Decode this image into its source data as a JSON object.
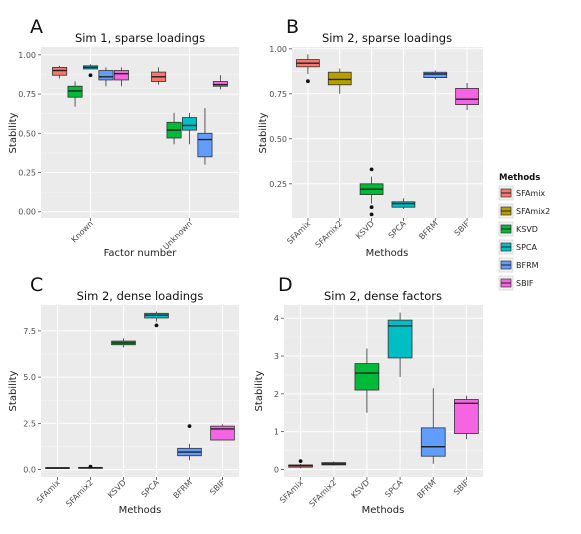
{
  "colors": {
    "SFAmix": "#f8766d",
    "SFAmix2": "#b79f00",
    "KSVD": "#00ba38",
    "SPCA": "#00bfc4",
    "BFRM": "#619cff",
    "SBIF": "#f564e3"
  },
  "legend": {
    "title": "Methods",
    "items": [
      "SFAmix",
      "SFAmix2",
      "KSVD",
      "SPCA",
      "BFRM",
      "SBIF"
    ]
  },
  "chart_data": [
    {
      "type": "boxplot",
      "panel_letter": "A",
      "title": "Sim 1, sparse loadings",
      "xlabel": "Factor number",
      "ylabel": "Stability",
      "categories": [
        "Known",
        "Unknown"
      ],
      "grouped": true,
      "yticks": [
        0.0,
        0.25,
        0.5,
        0.75,
        1.0
      ],
      "ytick_labels": [
        "0.00",
        "0.25",
        "0.50",
        "0.75",
        "1.00"
      ],
      "ylim": [
        -0.04,
        1.05
      ],
      "series": [
        {
          "name": "SFAmix",
          "boxes": [
            {
              "category": "Known",
              "lower": 0.85,
              "q1": 0.87,
              "median": 0.9,
              "q3": 0.92,
              "upper": 0.93,
              "outliers": []
            },
            {
              "category": "Unknown",
              "lower": 0.81,
              "q1": 0.83,
              "median": 0.86,
              "q3": 0.89,
              "upper": 0.92,
              "outliers": []
            }
          ]
        },
        {
          "name": "KSVD",
          "boxes": [
            {
              "category": "Known",
              "lower": 0.67,
              "q1": 0.73,
              "median": 0.77,
              "q3": 0.8,
              "upper": 0.83,
              "outliers": []
            },
            {
              "category": "Unknown",
              "lower": 0.43,
              "q1": 0.47,
              "median": 0.52,
              "q3": 0.57,
              "upper": 0.63,
              "outliers": []
            }
          ]
        },
        {
          "name": "SPCA",
          "boxes": [
            {
              "category": "Known",
              "lower": 0.91,
              "q1": 0.91,
              "median": 0.92,
              "q3": 0.93,
              "upper": 0.94,
              "outliers": [
                0.87
              ]
            },
            {
              "category": "Unknown",
              "lower": 0.43,
              "q1": 0.52,
              "median": 0.55,
              "q3": 0.6,
              "upper": 0.63,
              "outliers": []
            }
          ]
        },
        {
          "name": "BFRM",
          "boxes": [
            {
              "category": "Known",
              "lower": 0.8,
              "q1": 0.84,
              "median": 0.86,
              "q3": 0.9,
              "upper": 0.92,
              "outliers": []
            },
            {
              "category": "Unknown",
              "lower": 0.3,
              "q1": 0.35,
              "median": 0.46,
              "q3": 0.5,
              "upper": 0.66,
              "outliers": []
            }
          ]
        },
        {
          "name": "SBIF",
          "boxes": [
            {
              "category": "Known",
              "lower": 0.8,
              "q1": 0.84,
              "median": 0.88,
              "q3": 0.9,
              "upper": 0.92,
              "outliers": []
            },
            {
              "category": "Unknown",
              "lower": 0.78,
              "q1": 0.8,
              "median": 0.81,
              "q3": 0.83,
              "upper": 0.87,
              "outliers": []
            }
          ]
        }
      ]
    },
    {
      "type": "boxplot",
      "panel_letter": "B",
      "title": "Sim 2, sparse loadings",
      "xlabel": "Methods",
      "ylabel": "Stability",
      "categories": [
        "SFAmix",
        "SFAmix2",
        "KSVD",
        "SPCA",
        "BFRM",
        "SBIF"
      ],
      "grouped": false,
      "yticks": [
        0.25,
        0.5,
        0.75,
        1.0
      ],
      "ytick_labels": [
        "0.25",
        "0.50",
        "0.75",
        "1.00"
      ],
      "ylim": [
        0.06,
        1.01
      ],
      "series": [
        {
          "name": "SFAmix",
          "boxes": [
            {
              "category": "SFAmix",
              "lower": 0.86,
              "q1": 0.9,
              "median": 0.92,
              "q3": 0.94,
              "upper": 0.97,
              "outliers": [
                0.82
              ]
            }
          ]
        },
        {
          "name": "SFAmix2",
          "boxes": [
            {
              "category": "SFAmix2",
              "lower": 0.75,
              "q1": 0.8,
              "median": 0.83,
              "q3": 0.87,
              "upper": 0.89,
              "outliers": []
            }
          ]
        },
        {
          "name": "KSVD",
          "boxes": [
            {
              "category": "KSVD",
              "lower": 0.14,
              "q1": 0.19,
              "median": 0.22,
              "q3": 0.25,
              "upper": 0.29,
              "outliers": [
                0.33,
                0.12,
                0.08
              ]
            }
          ]
        },
        {
          "name": "SPCA",
          "boxes": [
            {
              "category": "SPCA",
              "lower": 0.11,
              "q1": 0.12,
              "median": 0.14,
              "q3": 0.15,
              "upper": 0.17,
              "outliers": []
            }
          ]
        },
        {
          "name": "BFRM",
          "boxes": [
            {
              "category": "BFRM",
              "lower": 0.83,
              "q1": 0.84,
              "median": 0.86,
              "q3": 0.87,
              "upper": 0.88,
              "outliers": []
            }
          ]
        },
        {
          "name": "SBIF",
          "boxes": [
            {
              "category": "SBIF",
              "lower": 0.66,
              "q1": 0.69,
              "median": 0.72,
              "q3": 0.78,
              "upper": 0.81,
              "outliers": []
            }
          ]
        }
      ]
    },
    {
      "type": "boxplot",
      "panel_letter": "C",
      "title": "Sim 2, dense loadings",
      "xlabel": "Methods",
      "ylabel": "Stability",
      "categories": [
        "SFAmix",
        "SFAmix2",
        "KSVD",
        "SPCA",
        "BFRM",
        "SBIF"
      ],
      "grouped": false,
      "yticks": [
        0.0,
        2.5,
        5.0,
        7.5
      ],
      "ytick_labels": [
        "0.0",
        "2.5",
        "5.0",
        "7.5"
      ],
      "ylim": [
        -0.4,
        8.9
      ],
      "series": [
        {
          "name": "SFAmix",
          "boxes": [
            {
              "category": "SFAmix",
              "lower": 0.05,
              "q1": 0.07,
              "median": 0.09,
              "q3": 0.11,
              "upper": 0.13,
              "outliers": []
            }
          ]
        },
        {
          "name": "SFAmix2",
          "boxes": [
            {
              "category": "SFAmix2",
              "lower": 0.06,
              "q1": 0.08,
              "median": 0.1,
              "q3": 0.12,
              "upper": 0.14,
              "outliers": [
                0.16
              ]
            }
          ]
        },
        {
          "name": "KSVD",
          "boxes": [
            {
              "category": "KSVD",
              "lower": 6.6,
              "q1": 6.75,
              "median": 6.85,
              "q3": 6.95,
              "upper": 7.1,
              "outliers": []
            }
          ]
        },
        {
          "name": "SPCA",
          "boxes": [
            {
              "category": "SPCA",
              "lower": 8.0,
              "q1": 8.2,
              "median": 8.35,
              "q3": 8.45,
              "upper": 8.55,
              "outliers": [
                7.8
              ]
            }
          ]
        },
        {
          "name": "BFRM",
          "boxes": [
            {
              "category": "BFRM",
              "lower": 0.5,
              "q1": 0.75,
              "median": 0.95,
              "q3": 1.15,
              "upper": 1.4,
              "outliers": [
                2.35
              ]
            }
          ]
        },
        {
          "name": "SBIF",
          "boxes": [
            {
              "category": "SBIF",
              "lower": 1.6,
              "q1": 1.6,
              "median": 2.2,
              "q3": 2.35,
              "upper": 2.45,
              "outliers": []
            }
          ]
        }
      ]
    },
    {
      "type": "boxplot",
      "panel_letter": "D",
      "title": "Sim 2, dense factors",
      "xlabel": "Methods",
      "ylabel": "Stability",
      "categories": [
        "SFAmix",
        "SFAmix2",
        "KSVD",
        "SPCA",
        "BFRM",
        "SBIF"
      ],
      "grouped": false,
      "yticks": [
        0,
        1,
        2,
        3,
        4
      ],
      "ytick_labels": [
        "0",
        "1",
        "2",
        "3",
        "4"
      ],
      "ylim": [
        -0.2,
        4.35
      ],
      "series": [
        {
          "name": "SFAmix",
          "boxes": [
            {
              "category": "SFAmix",
              "lower": 0.03,
              "q1": 0.06,
              "median": 0.1,
              "q3": 0.12,
              "upper": 0.15,
              "outliers": [
                0.22
              ]
            }
          ]
        },
        {
          "name": "SFAmix2",
          "boxes": [
            {
              "category": "SFAmix2",
              "lower": 0.1,
              "q1": 0.12,
              "median": 0.15,
              "q3": 0.18,
              "upper": 0.21,
              "outliers": []
            }
          ]
        },
        {
          "name": "KSVD",
          "boxes": [
            {
              "category": "KSVD",
              "lower": 1.5,
              "q1": 2.1,
              "median": 2.55,
              "q3": 2.8,
              "upper": 3.2,
              "outliers": []
            }
          ]
        },
        {
          "name": "SPCA",
          "boxes": [
            {
              "category": "SPCA",
              "lower": 2.45,
              "q1": 2.95,
              "median": 3.8,
              "q3": 3.95,
              "upper": 4.15,
              "outliers": []
            }
          ]
        },
        {
          "name": "BFRM",
          "boxes": [
            {
              "category": "BFRM",
              "lower": 0.15,
              "q1": 0.35,
              "median": 0.6,
              "q3": 1.1,
              "upper": 2.15,
              "outliers": []
            }
          ]
        },
        {
          "name": "SBIF",
          "boxes": [
            {
              "category": "SBIF",
              "lower": 0.8,
              "q1": 0.95,
              "median": 1.75,
              "q3": 1.85,
              "upper": 1.95,
              "outliers": []
            }
          ]
        }
      ]
    }
  ]
}
